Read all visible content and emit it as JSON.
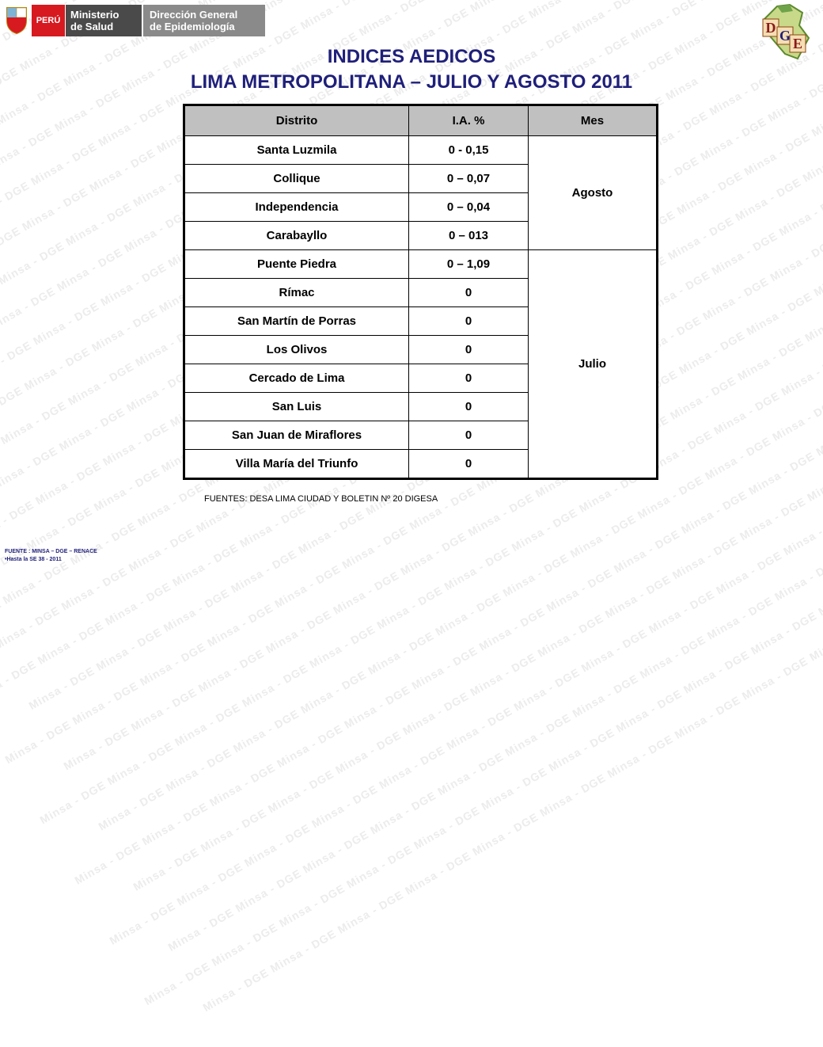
{
  "watermark": "Minsa - DGE",
  "header": {
    "country": "PERÚ",
    "ministry": [
      "Ministerio",
      "de Salud"
    ],
    "directorate": [
      "Dirección General",
      "de Epidemiología"
    ],
    "logo_letters": [
      "D",
      "G",
      "E"
    ]
  },
  "title": {
    "line1": "INDICES AEDICOS",
    "line2": "LIMA METROPOLITANA – JULIO Y AGOSTO 2011"
  },
  "table": {
    "headers": [
      "Distrito",
      "I.A. %",
      "Mes"
    ],
    "rows": [
      {
        "district": "Santa Luzmila",
        "ia": "0 - 0,15"
      },
      {
        "district": "Collique",
        "ia": "0 – 0,07"
      },
      {
        "district": "Independencia",
        "ia": "0 – 0,04"
      },
      {
        "district": "Carabayllo",
        "ia": "0 – 013"
      },
      {
        "district": "Puente Piedra",
        "ia": "0 – 1,09"
      },
      {
        "district": "Rímac",
        "ia": "0"
      },
      {
        "district": "San Martín de Porras",
        "ia": "0"
      },
      {
        "district": "Los Olivos",
        "ia": "0"
      },
      {
        "district": "Cercado de Lima",
        "ia": "0"
      },
      {
        "district": "San Luis",
        "ia": "0"
      },
      {
        "district": "San Juan de Miraflores",
        "ia": "0"
      },
      {
        "district": "Villa María del Triunfo",
        "ia": "0"
      }
    ],
    "month_groups": [
      {
        "label": "Agosto",
        "rows": 4
      },
      {
        "label": "Julio",
        "rows": 8
      }
    ]
  },
  "source_note": "FUENTES: DESA LIMA CIUDAD Y BOLETIN Nº 20 DIGESA",
  "footer": {
    "line1": "FUENTE : MINSA – DGE – RENACE",
    "line2": "•Hasta la SE 38 - 2011"
  },
  "colors": {
    "title": "#1f1f7a",
    "header_fill": "#c0c0c0",
    "peru_red": "#d71920",
    "ministry_gray": "#4a4a4a",
    "dge_gray": "#8a8a8a"
  }
}
